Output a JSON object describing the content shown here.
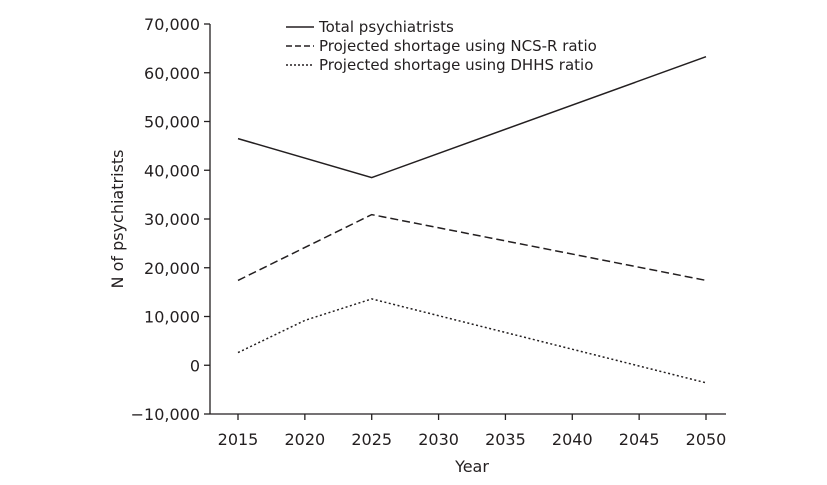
{
  "chart_data": {
    "type": "line",
    "title": "",
    "xlabel": "Year",
    "ylabel": "N of psychiatrists",
    "xlim": [
      2015,
      2050
    ],
    "ylim": [
      -10000,
      70000
    ],
    "x_ticks": [
      2015,
      2020,
      2025,
      2030,
      2035,
      2040,
      2045,
      2050
    ],
    "x_tick_labels": [
      "2015",
      "2020",
      "2025",
      "2030",
      "2035",
      "2040",
      "2045",
      "2050"
    ],
    "y_ticks": [
      -10000,
      0,
      10000,
      20000,
      30000,
      40000,
      50000,
      60000,
      70000
    ],
    "y_tick_labels": [
      "−10,000",
      "0",
      "10,000",
      "20,000",
      "30,000",
      "40,000",
      "50,000",
      "60,000",
      "70,000"
    ],
    "grid": false,
    "legend_position": "top-center",
    "series": [
      {
        "name": "Total psychiatrists",
        "line_style": "solid",
        "points": [
          [
            2015,
            46500
          ],
          [
            2025,
            38500
          ],
          [
            2050,
            63300
          ]
        ]
      },
      {
        "name": "Projected shortage using NCS-R ratio",
        "line_style": "dashed",
        "points": [
          [
            2015,
            17400
          ],
          [
            2025,
            30900
          ],
          [
            2050,
            17400
          ]
        ]
      },
      {
        "name": "Projected shortage using DHHS ratio",
        "line_style": "dotted",
        "points": [
          [
            2015,
            2600
          ],
          [
            2020,
            9200
          ],
          [
            2025,
            13600
          ],
          [
            2050,
            -3600
          ]
        ]
      }
    ]
  }
}
